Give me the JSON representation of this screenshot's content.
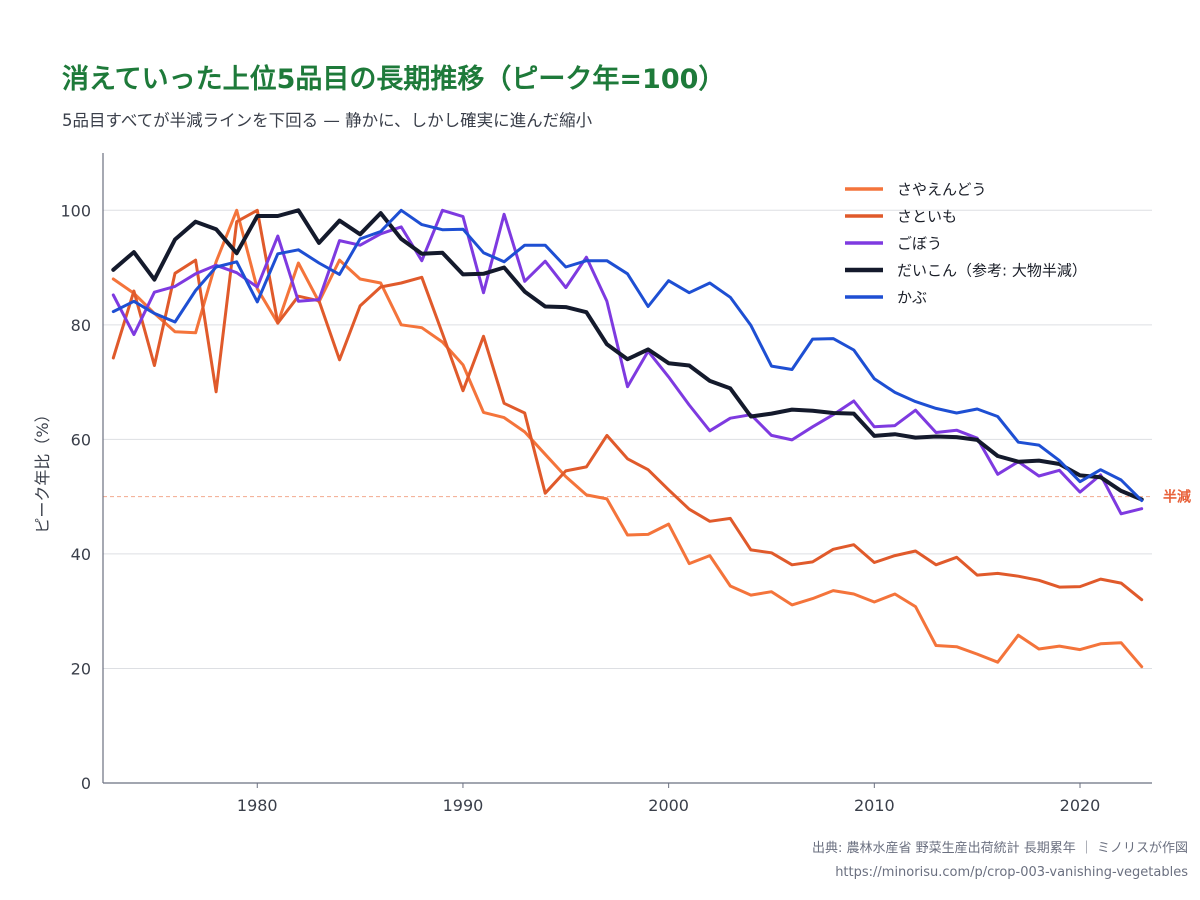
{
  "chart_data": {
    "type": "line",
    "title": "消えていった上位5品目の長期推移（ピーク年=100）",
    "subtitle": "5品目すべてが半減ラインを下回る — 静かに、しかし確実に進んだ縮小",
    "xlabel": "",
    "ylabel": "ピーク年比（%）",
    "xlim": [
      1972.5,
      2023.5
    ],
    "ylim": [
      0,
      110
    ],
    "x_ticks": [
      1980,
      1990,
      2000,
      2010,
      2020
    ],
    "y_ticks": [
      0,
      20,
      40,
      60,
      80,
      100
    ],
    "grid": true,
    "legend_position": "top-right",
    "reference_line": {
      "y": 50,
      "label": "半減",
      "color": "#E8613A"
    },
    "x": [
      1973,
      1974,
      1975,
      1976,
      1977,
      1978,
      1979,
      1980,
      1981,
      1982,
      1983,
      1984,
      1985,
      1986,
      1987,
      1988,
      1989,
      1990,
      1991,
      1992,
      1993,
      1994,
      1995,
      1996,
      1997,
      1998,
      1999,
      2000,
      2001,
      2002,
      2003,
      2004,
      2005,
      2006,
      2007,
      2008,
      2009,
      2010,
      2011,
      2012,
      2013,
      2014,
      2015,
      2016,
      2017,
      2018,
      2019,
      2020,
      2021,
      2022,
      2023
    ],
    "series": [
      {
        "name": "さやえんどう",
        "color": "#F4743B",
        "width": 3,
        "values": [
          88,
          85.5,
          82,
          78.8,
          78.6,
          91,
          100,
          86.3,
          80.3,
          90.8,
          84,
          91.3,
          88,
          87.3,
          80,
          79.5,
          77,
          73,
          64.7,
          63.8,
          61.3,
          57.4,
          53.5,
          50.3,
          49.6,
          43.3,
          43.4,
          45.2,
          38.3,
          39.7,
          34.4,
          32.8,
          33.4,
          31.1,
          32.2,
          33.6,
          33,
          31.6,
          33,
          30.8,
          24,
          23.8,
          22.5,
          21.1,
          25.8,
          23.4,
          23.9,
          23.3,
          24.3,
          24.5,
          20.3
        ]
      },
      {
        "name": "さといも",
        "color": "#E05A2B",
        "width": 3,
        "values": [
          74.2,
          85.9,
          72.9,
          89,
          91.3,
          68.3,
          98,
          100,
          80.3,
          85,
          84.2,
          73.9,
          83.3,
          86.6,
          87.3,
          88.3,
          78.5,
          68.5,
          78,
          66.3,
          64.6,
          50.6,
          54.5,
          55.2,
          60.7,
          56.6,
          54.7,
          51.2,
          47.8,
          45.7,
          46.2,
          40.7,
          40.2,
          38.1,
          38.6,
          40.8,
          41.6,
          38.5,
          39.7,
          40.5,
          38.1,
          39.4,
          36.3,
          36.6,
          36.1,
          35.4,
          34.2,
          34.3,
          35.6,
          34.9,
          32
        ]
      },
      {
        "name": "ごぼう",
        "color": "#7E3AE0",
        "width": 3,
        "values": [
          85.2,
          78.3,
          85.7,
          86.7,
          88.9,
          90.4,
          89.1,
          86.6,
          95.5,
          84.1,
          84.4,
          94.7,
          93.9,
          95.9,
          97.1,
          91.2,
          100,
          98.9,
          85.6,
          99.3,
          87.6,
          91.1,
          86.5,
          91.8,
          84.1,
          69.2,
          75.4,
          70.9,
          66,
          61.5,
          63.7,
          64.3,
          60.7,
          59.9,
          62.2,
          64.3,
          66.7,
          62.2,
          62.4,
          65.1,
          61.2,
          61.6,
          60.2,
          53.9,
          56.1,
          53.6,
          54.6,
          50.8,
          53.8,
          47,
          47.9
        ]
      },
      {
        "name": "だいこん（参考: 大物半減）",
        "color": "#141A2C",
        "width": 4,
        "values": [
          89.6,
          92.7,
          87.9,
          94.9,
          98,
          96.7,
          92.5,
          99,
          99,
          100,
          94.3,
          98.2,
          95.8,
          99.5,
          95,
          92.4,
          92.6,
          88.8,
          88.9,
          90,
          85.8,
          83.2,
          83.1,
          82.2,
          76.6,
          74,
          75.7,
          73.3,
          72.9,
          70.2,
          68.9,
          64,
          64.5,
          65.2,
          65,
          64.6,
          64.5,
          60.6,
          60.9,
          60.3,
          60.5,
          60.4,
          59.9,
          57.1,
          56.1,
          56.3,
          55.7,
          53.7,
          53.4,
          51,
          49.5
        ]
      },
      {
        "name": "かぶ",
        "color": "#1E4FD3",
        "width": 3,
        "values": [
          82.3,
          84.1,
          82,
          80.5,
          86,
          90.1,
          91,
          84,
          92.4,
          93.1,
          90.8,
          88.8,
          95,
          96.3,
          100,
          97.5,
          96.6,
          96.7,
          92.6,
          91,
          93.9,
          93.9,
          90.1,
          91.2,
          91.2,
          88.9,
          83.2,
          87.7,
          85.6,
          87.3,
          84.8,
          79.9,
          72.8,
          72.2,
          77.5,
          77.6,
          75.6,
          70.6,
          68.2,
          66.6,
          65.4,
          64.6,
          65.3,
          64,
          59.5,
          59,
          56.3,
          52.6,
          54.7,
          52.9,
          49.3
        ]
      }
    ]
  },
  "footer": {
    "source": "出典: 農林水産省 野菜生産出荷統計 長期累年 ｜ ミノリスが作図",
    "url": "https://minorisu.com/p/crop-003-vanishing-vegetables"
  }
}
